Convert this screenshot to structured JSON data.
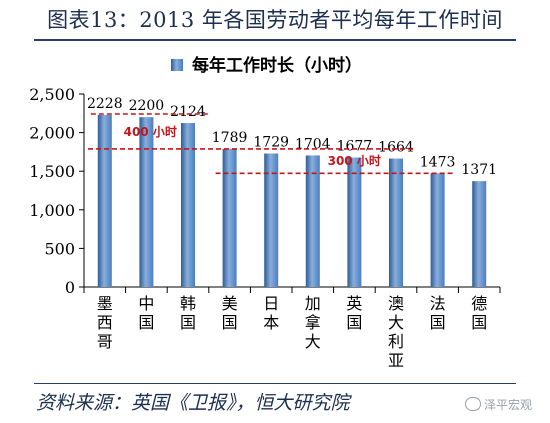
{
  "page": {
    "title": "图表13：2013 年各国劳动者平均每年工作时间",
    "source": "资料来源：英国《卫报》，恒大研究院",
    "watermark": "泽平宏观"
  },
  "colors": {
    "bar": "#4a7ec0",
    "bar_dark": "#2e5b96",
    "bar_light": "#88aedc",
    "annotation": "#c0171d",
    "frame": "#2a3d66"
  },
  "chart_data": {
    "type": "bar",
    "title": "",
    "xlabel": "",
    "ylabel": "",
    "ylim": [
      0,
      2500
    ],
    "yticks": [
      0,
      500,
      1000,
      1500,
      2000,
      2500
    ],
    "ytick_labels": [
      "0",
      "500",
      "1,000",
      "1,500",
      "2,000",
      "2,500"
    ],
    "grid": false,
    "legend_position": "top-center",
    "categories": [
      "墨西哥",
      "中国",
      "韩国",
      "美国",
      "日本",
      "加拿大",
      "英国",
      "澳大利亚",
      "法国",
      "德国"
    ],
    "series": [
      {
        "name": "每年工作时长（小时）",
        "values": [
          2228,
          2200,
          2124,
          1789,
          1729,
          1704,
          1677,
          1664,
          1473,
          1371
        ]
      }
    ],
    "annotations": [
      {
        "text": "400 小时",
        "value_high": 2228,
        "value_low": 1789
      },
      {
        "text": "300 小时",
        "value_high": 1789,
        "value_low": 1473
      }
    ]
  }
}
